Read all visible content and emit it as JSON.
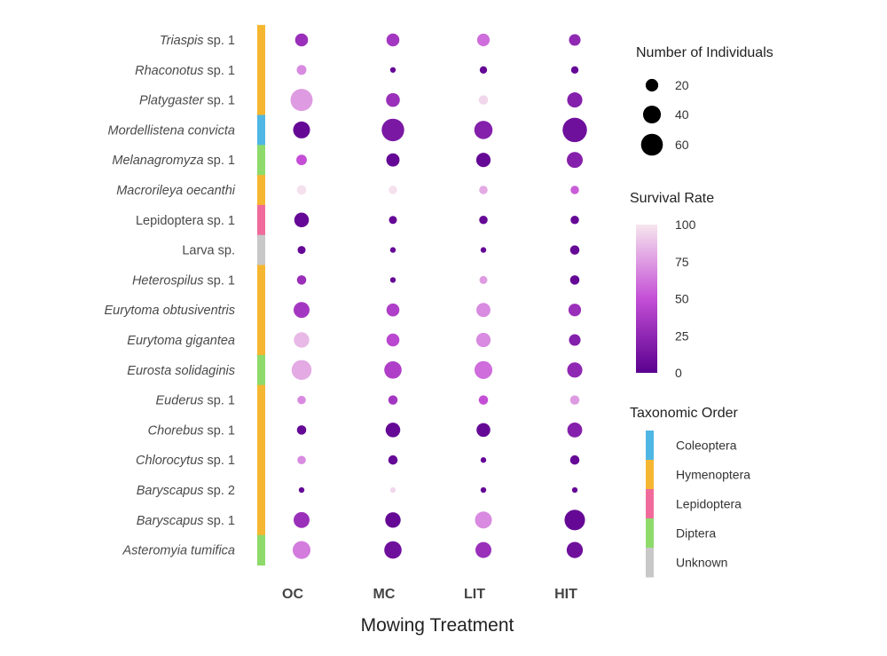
{
  "chart_data": {
    "type": "scatter",
    "xlabel": "Mowing Treatment",
    "categories": [
      "OC",
      "MC",
      "LIT",
      "HIT"
    ],
    "rows": [
      {
        "parts": [
          {
            "t": "Triaspis",
            "i": true
          },
          {
            "t": " sp. 1",
            "i": false
          }
        ],
        "order": "Hymenoptera",
        "n": [
          21,
          21,
          20,
          17
        ],
        "survival": [
          30,
          35,
          60,
          25
        ]
      },
      {
        "parts": [
          {
            "t": "Rhaconotus",
            "i": true
          },
          {
            "t": " sp. 1",
            "i": false
          }
        ],
        "order": "Hymenoptera",
        "n": [
          12,
          4,
          7,
          7
        ],
        "survival": [
          70,
          5,
          5,
          5
        ]
      },
      {
        "parts": [
          {
            "t": "Platygaster",
            "i": true
          },
          {
            "t": " sp. 1",
            "i": false
          }
        ],
        "order": "Hymenoptera",
        "n": [
          62,
          24,
          11,
          29
        ],
        "survival": [
          75,
          30,
          95,
          20
        ]
      },
      {
        "parts": [
          {
            "t": "Mordellistena convicta",
            "i": true
          }
        ],
        "order": "Coleoptera",
        "n": [
          36,
          64,
          42,
          75
        ],
        "survival": [
          5,
          15,
          20,
          10
        ]
      },
      {
        "parts": [
          {
            "t": "Melanagromyza",
            "i": true
          },
          {
            "t": " sp. 1",
            "i": false
          }
        ],
        "order": "Diptera",
        "n": [
          14,
          22,
          26,
          32
        ],
        "survival": [
          50,
          5,
          5,
          20
        ]
      },
      {
        "parts": [
          {
            "t": "Macrorileya oecanthi",
            "i": true
          }
        ],
        "order": "Hymenoptera",
        "n": [
          11,
          9,
          9,
          9
        ],
        "survival": [
          98,
          98,
          80,
          55
        ]
      },
      {
        "parts": [
          {
            "t": "Lepidoptera",
            "i": false
          },
          {
            "t": " sp. 1",
            "i": false
          }
        ],
        "order": "Lepidoptera",
        "n": [
          27,
          8,
          9,
          9
        ],
        "survival": [
          5,
          5,
          5,
          5
        ]
      },
      {
        "parts": [
          {
            "t": "Larva sp.",
            "i": false
          }
        ],
        "order": "Unknown",
        "n": [
          8,
          4,
          4,
          11
        ],
        "survival": [
          5,
          5,
          5,
          5
        ]
      },
      {
        "parts": [
          {
            "t": "Heterospilus",
            "i": true
          },
          {
            "t": " sp. 1",
            "i": false
          }
        ],
        "order": "Hymenoptera",
        "n": [
          11,
          4,
          8,
          11
        ],
        "survival": [
          30,
          5,
          75,
          5
        ]
      },
      {
        "parts": [
          {
            "t": "Eurytoma obtusiventris",
            "i": true
          }
        ],
        "order": "Hymenoptera",
        "n": [
          32,
          21,
          25,
          20
        ],
        "survival": [
          35,
          40,
          70,
          30
        ]
      },
      {
        "parts": [
          {
            "t": "Eurytoma gigantea",
            "i": true
          }
        ],
        "order": "Hymenoptera",
        "n": [
          30,
          21,
          26,
          17
        ],
        "survival": [
          85,
          45,
          70,
          20
        ]
      },
      {
        "parts": [
          {
            "t": "Eurosta solidaginis",
            "i": true
          }
        ],
        "order": "Diptera",
        "n": [
          50,
          38,
          40,
          29
        ],
        "survival": [
          80,
          40,
          60,
          25
        ]
      },
      {
        "parts": [
          {
            "t": "Euderus",
            "i": true
          },
          {
            "t": " sp. 1",
            "i": false
          }
        ],
        "order": "Hymenoptera",
        "n": [
          9,
          11,
          11,
          11
        ],
        "survival": [
          70,
          35,
          50,
          75
        ]
      },
      {
        "parts": [
          {
            "t": "Chorebus",
            "i": true
          },
          {
            "t": " sp. 1",
            "i": false
          }
        ],
        "order": "Hymenoptera",
        "n": [
          11,
          27,
          24,
          28
        ],
        "survival": [
          5,
          5,
          5,
          20
        ]
      },
      {
        "parts": [
          {
            "t": "Chlorocytus",
            "i": true
          },
          {
            "t": " sp. 1",
            "i": false
          }
        ],
        "order": "Hymenoptera",
        "n": [
          9,
          11,
          4,
          11
        ],
        "survival": [
          70,
          5,
          5,
          5
        ]
      },
      {
        "parts": [
          {
            "t": "Baryscapus",
            "i": true
          },
          {
            "t": " sp. 2",
            "i": false
          }
        ],
        "order": "Hymenoptera",
        "n": [
          4,
          4,
          4,
          4
        ],
        "survival": [
          5,
          95,
          5,
          5
        ]
      },
      {
        "parts": [
          {
            "t": "Baryscapus",
            "i": true
          },
          {
            "t": " sp. 1",
            "i": false
          }
        ],
        "order": "Hymenoptera",
        "n": [
          32,
          30,
          36,
          53
        ],
        "survival": [
          30,
          5,
          70,
          5
        ]
      },
      {
        "parts": [
          {
            "t": "Asteromyia tumifica",
            "i": true
          }
        ],
        "order": "Diptera",
        "n": [
          40,
          38,
          32,
          33
        ],
        "survival": [
          65,
          10,
          30,
          10
        ]
      }
    ],
    "size_legend": {
      "title": "Number of Individuals",
      "values": [
        20,
        40,
        60
      ]
    },
    "color_legend": {
      "title": "Survival Rate",
      "ticks": [
        100,
        75,
        50,
        25,
        0
      ],
      "low_color": "#5a008f",
      "mid_color": "#c44fd6",
      "high_color": "#f7e6ee"
    },
    "order_legend": {
      "title": "Taxonomic Order",
      "items": [
        {
          "label": "Coleoptera",
          "color": "#4fb7e3"
        },
        {
          "label": "Hymenoptera",
          "color": "#f5b731"
        },
        {
          "label": "Lepidoptera",
          "color": "#f06b9b"
        },
        {
          "label": "Diptera",
          "color": "#8edb6b"
        },
        {
          "label": "Unknown",
          "color": "#c8c8c8"
        }
      ]
    }
  }
}
